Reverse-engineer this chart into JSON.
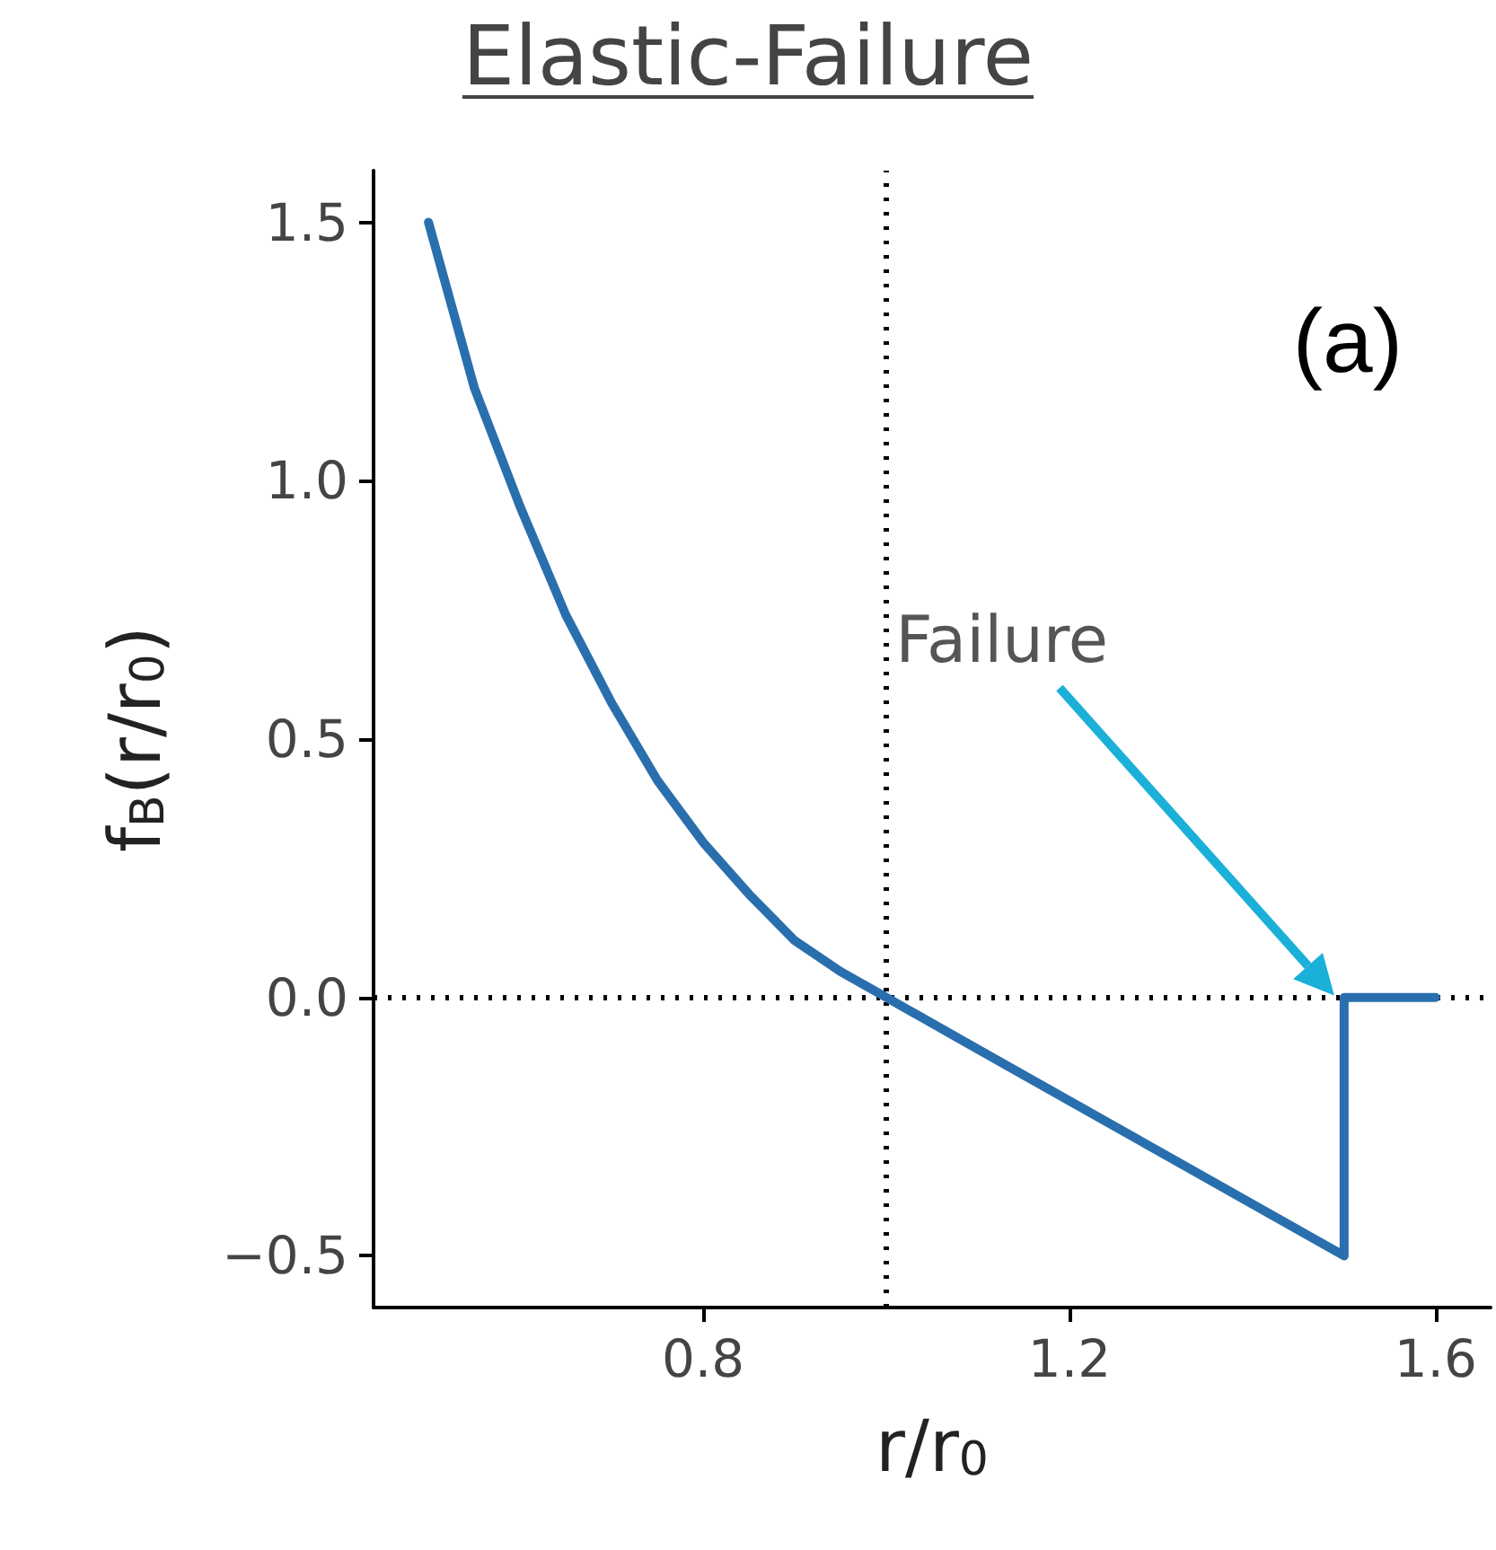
{
  "chart_data": {
    "type": "line",
    "title": "Elastic-Failure",
    "xlabel": "r/r$_{0}$",
    "ylabel": "f$_{B}$(r/r$_{0}$)",
    "annotations": [
      "Failure",
      "(a)"
    ],
    "x": [
      0.5,
      0.55,
      0.6,
      0.65,
      0.7,
      0.75,
      0.8,
      0.85,
      0.9,
      0.95,
      1.0,
      1.1,
      1.2,
      1.3,
      1.4,
      1.5,
      1.5,
      1.6
    ],
    "series": [
      {
        "color": "#2a6fad",
        "values": [
          1.5,
          1.18,
          0.95,
          0.74,
          0.57,
          0.42,
          0.3,
          0.2,
          0.11,
          0.05,
          0,
          -0.1,
          -0.2,
          -0.3,
          -0.4,
          -0.5,
          0,
          0
        ]
      }
    ],
    "xlim": [
      0.44,
      1.66
    ],
    "ylim": [
      -0.6,
      1.6
    ],
    "xticks": [
      0.8,
      1.2,
      1.6
    ],
    "yticks": [
      {
        "value": -0.5,
        "label": "−0.5"
      },
      {
        "value": 0,
        "label": "0.0"
      },
      {
        "value": 0.5,
        "label": "0.5"
      },
      {
        "value": 1,
        "label": "1.0"
      },
      {
        "value": 1.5,
        "label": "1.5"
      }
    ],
    "ref_lines": [
      {
        "axis": "x",
        "value": 1,
        "line_style": "dotted",
        "color": "#000000"
      },
      {
        "axis": "y",
        "value": 0,
        "line_style": "dotted",
        "color": "#000000"
      }
    ],
    "grid": false,
    "marker": "none",
    "line_style": "solid"
  }
}
